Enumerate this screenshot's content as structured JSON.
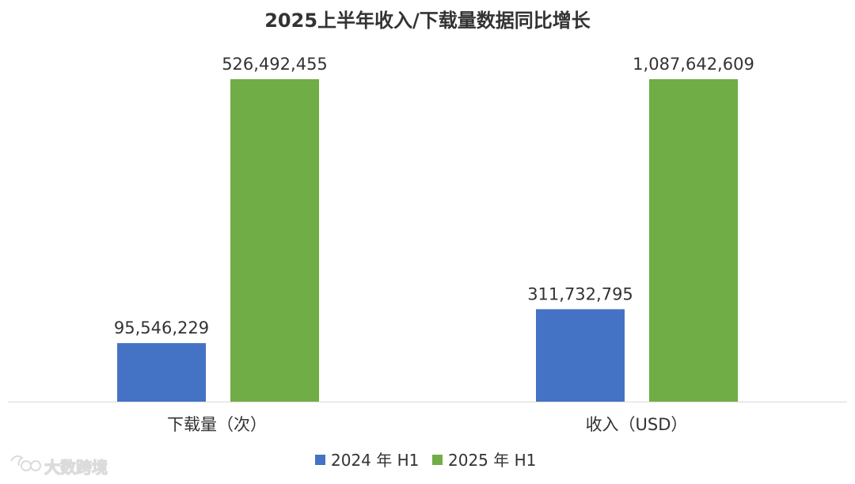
{
  "chart_data": {
    "type": "bar",
    "title": "2025上半年收入/下载量数据同比增长",
    "categories": [
      "下载量（次）",
      "收入（USD）"
    ],
    "series": [
      {
        "name": "2024 年 H1",
        "color": "#4472C4",
        "values": [
          95546229,
          311732795
        ],
        "labels": [
          "95,546,229",
          "311,732,795"
        ]
      },
      {
        "name": "2025 年 H1",
        "color": "#70AD47",
        "values": [
          526492455,
          1087642609
        ],
        "labels": [
          "526,492,455",
          "1,087,642,609"
        ]
      }
    ],
    "axis_scales": "independent per category",
    "xlabel": "",
    "ylabel": "",
    "grid": false,
    "legend_position": "bottom",
    "axis_color": "#D9D9D9"
  },
  "watermark": {
    "text": "大数跨境",
    "icon": "brand-logo-icon"
  }
}
